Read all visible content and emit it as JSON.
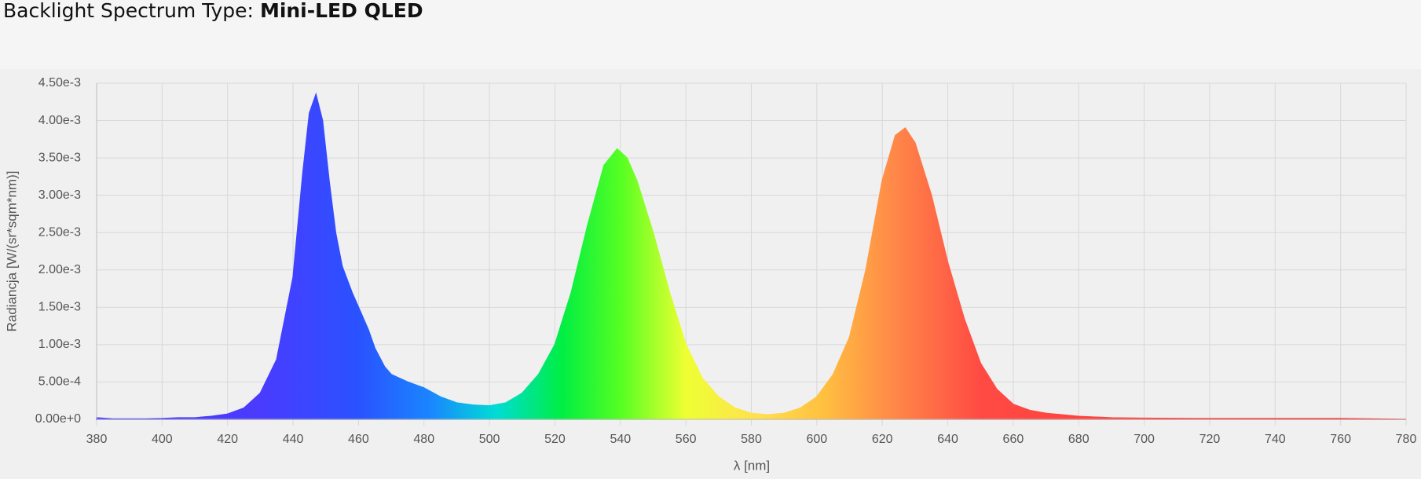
{
  "chart_data": {
    "type": "area",
    "title_label": "Backlight Spectrum Type:",
    "title_value": "Mini-LED QLED",
    "x_label": "λ [nm]",
    "y_label": "Radiancja [W/(sr*sqm*nm)]",
    "x": [
      380,
      385,
      390,
      395,
      400,
      405,
      410,
      415,
      420,
      425,
      430,
      435,
      440,
      443,
      445,
      447,
      449,
      451,
      453,
      455,
      458,
      460,
      463,
      465,
      468,
      470,
      475,
      480,
      485,
      490,
      495,
      500,
      505,
      510,
      515,
      520,
      525,
      530,
      535,
      539,
      542,
      545,
      550,
      555,
      560,
      565,
      570,
      575,
      580,
      585,
      590,
      595,
      600,
      605,
      610,
      615,
      620,
      624,
      627,
      630,
      635,
      640,
      645,
      650,
      655,
      660,
      665,
      670,
      680,
      690,
      700,
      720,
      740,
      760,
      780
    ],
    "values": [
      2e-05,
      5e-06,
      5e-06,
      5e-06,
      1e-05,
      2e-05,
      2e-05,
      4e-05,
      7e-05,
      0.00015,
      0.00035,
      0.0008,
      0.0019,
      0.0033,
      0.0041,
      0.00435,
      0.004,
      0.0032,
      0.0025,
      0.00205,
      0.0017,
      0.0015,
      0.0012,
      0.00095,
      0.0007,
      0.0006,
      0.0005,
      0.00042,
      0.0003,
      0.00022,
      0.00019,
      0.00018,
      0.00022,
      0.00035,
      0.0006,
      0.001,
      0.0017,
      0.0026,
      0.0034,
      0.00362,
      0.0035,
      0.0032,
      0.0025,
      0.0017,
      0.001,
      0.00055,
      0.0003,
      0.00015,
      8e-05,
      6e-05,
      8e-05,
      0.00015,
      0.0003,
      0.0006,
      0.0011,
      0.002,
      0.0032,
      0.0038,
      0.0039,
      0.0037,
      0.003,
      0.0021,
      0.00135,
      0.00075,
      0.0004,
      0.0002,
      0.00012,
      8e-05,
      4e-05,
      2e-05,
      1.5e-05,
      1e-05,
      1e-05,
      1e-05,
      0
    ],
    "gradient": [
      [
        430,
        "#4a3bff"
      ],
      [
        460,
        "#2a52ff"
      ],
      [
        482,
        "#1a86ff"
      ],
      [
        502,
        "#00dcd4"
      ],
      [
        522,
        "#00ee44"
      ],
      [
        540,
        "#55ff22"
      ],
      [
        560,
        "#eeff33"
      ],
      [
        582,
        "#ffe050"
      ],
      [
        602,
        "#ffc040"
      ],
      [
        622,
        "#ff8c48"
      ],
      [
        650,
        "#ff4a44"
      ],
      [
        780,
        "#ff3030"
      ]
    ],
    "xlim": [
      380,
      780
    ],
    "xticks": [
      380,
      400,
      420,
      440,
      460,
      480,
      500,
      520,
      540,
      560,
      580,
      600,
      620,
      640,
      660,
      680,
      700,
      720,
      740,
      760,
      780
    ],
    "ylim": [
      0,
      0.0045
    ],
    "yticks": [
      {
        "value": 0,
        "label": "0.00e+0"
      },
      {
        "value": 0.0005,
        "label": "5.00e-4"
      },
      {
        "value": 0.001,
        "label": "1.00e-3"
      },
      {
        "value": 0.0015,
        "label": "1.50e-3"
      },
      {
        "value": 0.002,
        "label": "2.00e-3"
      },
      {
        "value": 0.0025,
        "label": "2.50e-3"
      },
      {
        "value": 0.003,
        "label": "3.00e-3"
      },
      {
        "value": 0.0035,
        "label": "3.50e-3"
      },
      {
        "value": 0.004,
        "label": "4.00e-3"
      },
      {
        "value": 0.0045,
        "label": "4.50e-3"
      }
    ],
    "grid": true
  }
}
